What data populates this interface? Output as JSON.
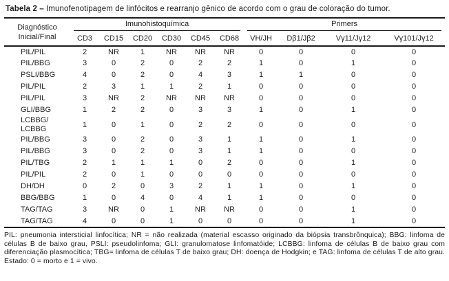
{
  "title": {
    "label": "Tabela 2 –",
    "caption": "Imunofenotipagem de linfócitos e rearranjo gênico de acordo com o grau de coloração do tumor."
  },
  "table": {
    "diagnosis_header": [
      "Diagnóstico",
      "Inicial/Final"
    ],
    "groups": [
      {
        "label": "Imunohistoquímica",
        "columns": [
          "CD3",
          "CD15",
          "CD20",
          "CD30",
          "CD45",
          "CD68"
        ]
      },
      {
        "label": "Primers",
        "columns": [
          "VH/JH",
          "Dβ1/Jβ2",
          "Vγ11/Jγ12",
          "Vγ101/Jγ12"
        ]
      }
    ],
    "rows": [
      {
        "diagnosis": "PIL/PIL",
        "values": [
          "2",
          "NR",
          "1",
          "NR",
          "NR",
          "NR",
          "0",
          "0",
          "0",
          "0"
        ]
      },
      {
        "diagnosis": "PIL/BBG",
        "values": [
          "3",
          "0",
          "2",
          "0",
          "2",
          "2",
          "1",
          "0",
          "1",
          "0"
        ]
      },
      {
        "diagnosis": "PSLI/BBG",
        "values": [
          "4",
          "0",
          "2",
          "0",
          "4",
          "3",
          "1",
          "1",
          "0",
          "0"
        ]
      },
      {
        "diagnosis": "PIL/PIL",
        "values": [
          "2",
          "3",
          "1",
          "1",
          "2",
          "1",
          "0",
          "0",
          "0",
          "0"
        ]
      },
      {
        "diagnosis": "PIL/PIL",
        "values": [
          "3",
          "NR",
          "2",
          "NR",
          "NR",
          "NR",
          "0",
          "0",
          "0",
          "0"
        ]
      },
      {
        "diagnosis": "GLI/BBG",
        "values": [
          "1",
          "2",
          "2",
          "0",
          "3",
          "3",
          "1",
          "0",
          "1",
          "0"
        ]
      },
      {
        "diagnosis": "LCBBG/\nLCBBG",
        "values": [
          "1",
          "0",
          "1",
          "0",
          "2",
          "2",
          "0",
          "0",
          "0",
          "0"
        ]
      },
      {
        "diagnosis": "PIL/BBG",
        "values": [
          "3",
          "0",
          "2",
          "0",
          "3",
          "1",
          "1",
          "0",
          "1",
          "0"
        ]
      },
      {
        "diagnosis": "PIL/BBG",
        "values": [
          "3",
          "0",
          "2",
          "0",
          "3",
          "1",
          "1",
          "0",
          "0",
          "0"
        ]
      },
      {
        "diagnosis": "PIL/TBG",
        "values": [
          "2",
          "1",
          "1",
          "1",
          "0",
          "2",
          "0",
          "0",
          "1",
          "0"
        ]
      },
      {
        "diagnosis": "PIL/PIL",
        "values": [
          "2",
          "0",
          "1",
          "0",
          "0",
          "0",
          "0",
          "0",
          "0",
          "0"
        ]
      },
      {
        "diagnosis": "DH/DH",
        "values": [
          "0",
          "2",
          "0",
          "3",
          "2",
          "1",
          "1",
          "0",
          "1",
          "0"
        ]
      },
      {
        "diagnosis": "BBG/BBG",
        "values": [
          "1",
          "0",
          "4",
          "0",
          "4",
          "1",
          "1",
          "0",
          "0",
          "0"
        ]
      },
      {
        "diagnosis": "TAG/TAG",
        "values": [
          "3",
          "NR",
          "0",
          "1",
          "NR",
          "NR",
          "0",
          "0",
          "1",
          "0"
        ]
      },
      {
        "diagnosis": "TAG/TAG",
        "values": [
          "4",
          "0",
          "0",
          "1",
          "0",
          "0",
          "0",
          "0",
          "1",
          "0"
        ]
      }
    ]
  },
  "footnote": "PIL: pneumonia intersticial linfocítica; NR = não realizada (material escasso originado da biópsia transbrônquica); BBG: linfoma de células B de baixo grau, PSLI: pseudolinfoma; GLI: granulomatose linfomatóide; LCBBG: linfoma de células B de baixo grau com diferenciação plasmocítica; TBG= linfoma de células T de baixo grau; DH: doença de Hodgkin; e TAG: linfoma de células T de alto grau. Estado: 0 = morto e 1 = vivo."
}
